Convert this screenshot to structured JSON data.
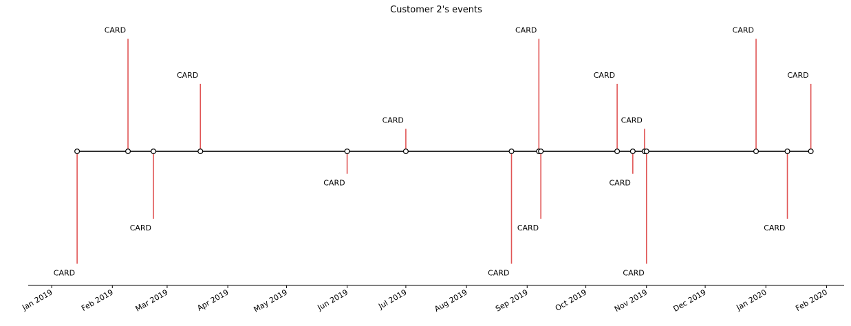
{
  "chart_data": {
    "type": "timeline",
    "title": "Customer 2's events",
    "x_range": [
      "2018-12-20",
      "2020-02-10"
    ],
    "y_range": [
      -6,
      6
    ],
    "x_tick_labels": [
      {
        "date": "2019-01-01",
        "label": "Jan 2019"
      },
      {
        "date": "2019-02-01",
        "label": "Feb 2019"
      },
      {
        "date": "2019-03-01",
        "label": "Mar 2019"
      },
      {
        "date": "2019-04-01",
        "label": "Apr 2019"
      },
      {
        "date": "2019-05-01",
        "label": "May 2019"
      },
      {
        "date": "2019-06-01",
        "label": "Jun 2019"
      },
      {
        "date": "2019-07-01",
        "label": "Jul 2019"
      },
      {
        "date": "2019-08-01",
        "label": "Aug 2019"
      },
      {
        "date": "2019-09-01",
        "label": "Sep 2019"
      },
      {
        "date": "2019-10-01",
        "label": "Oct 2019"
      },
      {
        "date": "2019-11-01",
        "label": "Nov 2019"
      },
      {
        "date": "2019-12-01",
        "label": "Dec 2019"
      },
      {
        "date": "2020-01-01",
        "label": "Jan 2020"
      },
      {
        "date": "2020-02-01",
        "label": "Feb 2020"
      }
    ],
    "events": [
      {
        "date": "2019-01-14",
        "level": -5,
        "label": "CARD"
      },
      {
        "date": "2019-02-09",
        "level": 5,
        "label": "CARD"
      },
      {
        "date": "2019-02-22",
        "level": -3,
        "label": "CARD"
      },
      {
        "date": "2019-03-18",
        "level": 3,
        "label": "CARD"
      },
      {
        "date": "2019-06-01",
        "level": -1,
        "label": "CARD"
      },
      {
        "date": "2019-07-01",
        "level": 1,
        "label": "CARD"
      },
      {
        "date": "2019-08-24",
        "level": -5,
        "label": "CARD"
      },
      {
        "date": "2019-09-07",
        "level": 5,
        "label": "CARD"
      },
      {
        "date": "2019-09-08",
        "level": -3,
        "label": "CARD"
      },
      {
        "date": "2019-10-17",
        "level": 3,
        "label": "CARD"
      },
      {
        "date": "2019-10-25",
        "level": -1,
        "label": "CARD"
      },
      {
        "date": "2019-10-31",
        "level": 1,
        "label": "CARD"
      },
      {
        "date": "2019-11-01",
        "level": -5,
        "label": "CARD"
      },
      {
        "date": "2019-12-27",
        "level": 5,
        "label": "CARD"
      },
      {
        "date": "2020-01-12",
        "level": -3,
        "label": "CARD"
      },
      {
        "date": "2020-01-24",
        "level": 3,
        "label": "CARD"
      }
    ],
    "colors": {
      "stem": "#e05555",
      "baseline": "#333333",
      "marker_fill": "#ffffff",
      "marker_edge": "#000000",
      "axis": "#000000"
    },
    "grid": false,
    "legend": "none"
  }
}
